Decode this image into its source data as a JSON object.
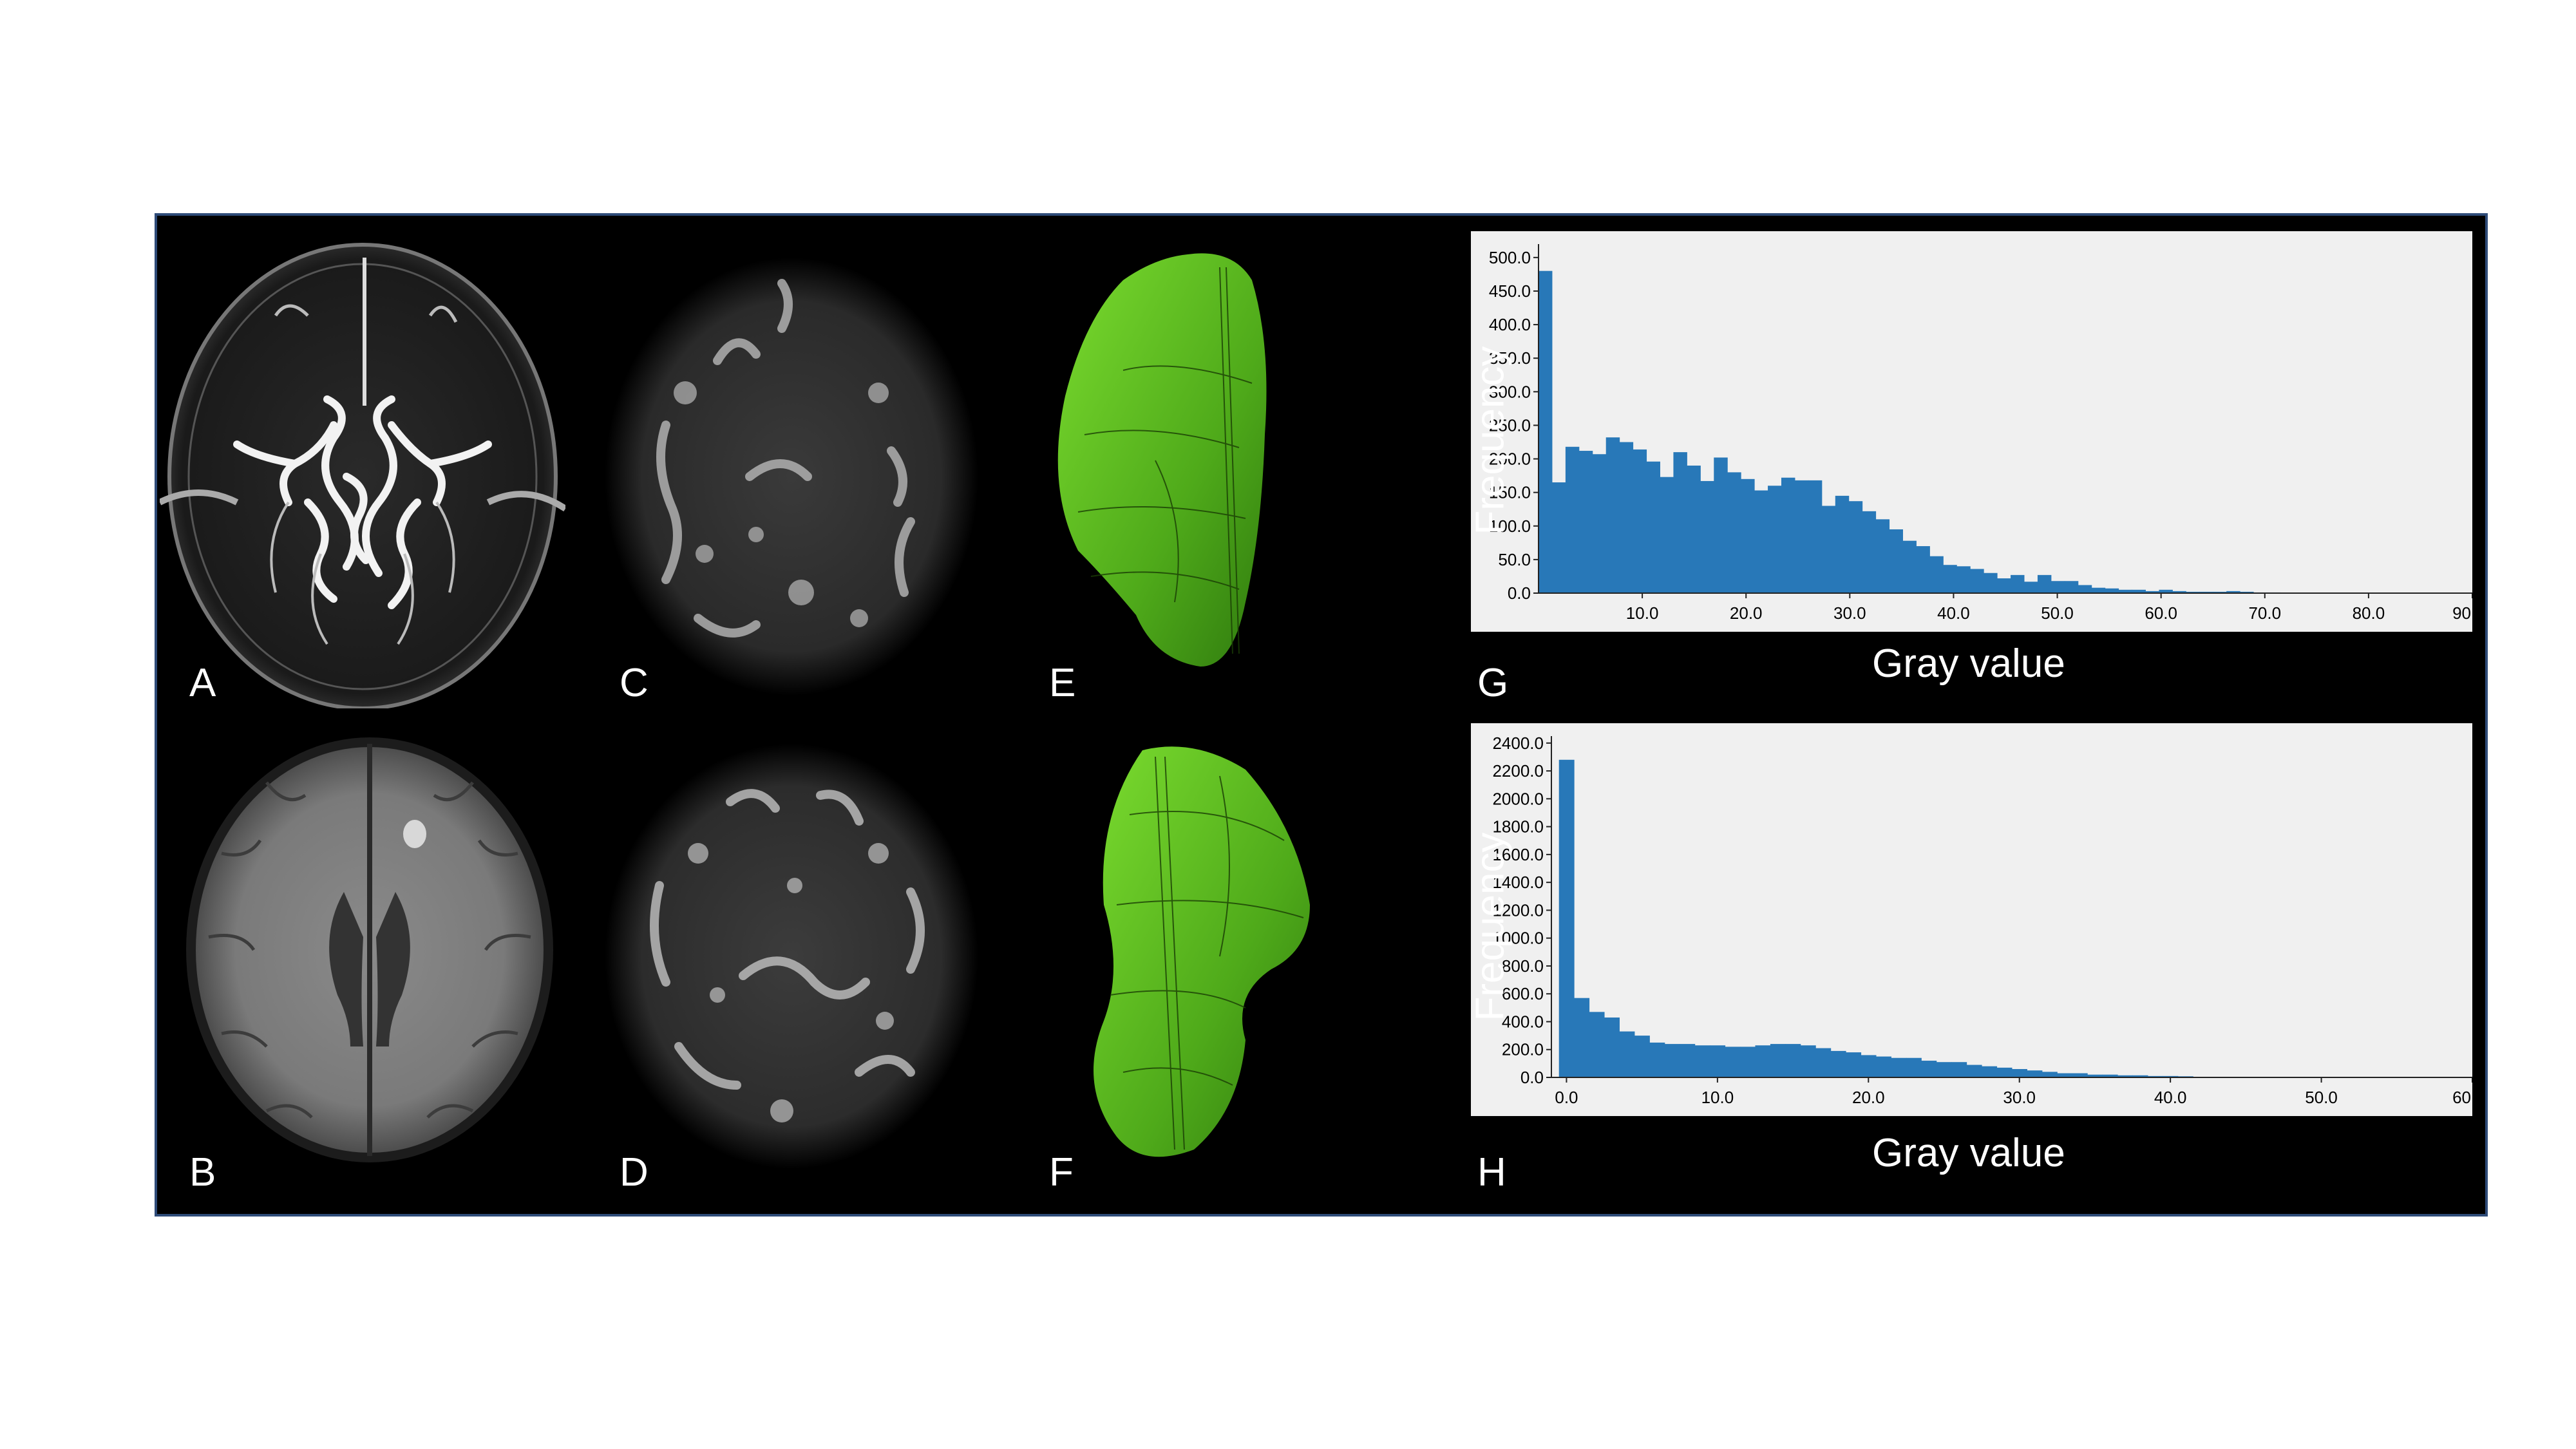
{
  "panels": {
    "A": "A",
    "B": "B",
    "C": "C",
    "D": "D",
    "E": "E",
    "F": "F",
    "G": "G",
    "H": "H"
  },
  "colors": {
    "bar": "#2878b8",
    "plot_bg": "#f0f0f0",
    "mesh": "#5ec81f",
    "frame": "#2e4b78"
  },
  "chart_data": [
    {
      "type": "bar",
      "panel": "G",
      "xlabel": "Gray value",
      "ylabel": "Frequency",
      "xlim": [
        0,
        90
      ],
      "ylim": [
        0,
        520
      ],
      "xticks": [
        "10.0",
        "20.0",
        "30.0",
        "40.0",
        "50.0",
        "60.0",
        "70.0",
        "80.0",
        "90"
      ],
      "xtick_values": [
        10,
        20,
        30,
        40,
        50,
        60,
        70,
        80,
        90
      ],
      "yticks": [
        "0.0",
        "50.0",
        "100.0",
        "150.0",
        "200.0",
        "250.0",
        "300.0",
        "350.0",
        "400.0",
        "450.0",
        "500.0"
      ],
      "ytick_values": [
        0,
        50,
        100,
        150,
        200,
        250,
        300,
        350,
        400,
        450,
        500
      ],
      "bin_width": 1.3,
      "values": [
        480,
        165,
        218,
        212,
        207,
        232,
        225,
        214,
        196,
        173,
        210,
        190,
        167,
        202,
        180,
        170,
        153,
        160,
        172,
        168,
        168,
        130,
        145,
        137,
        122,
        110,
        95,
        78,
        70,
        55,
        42,
        40,
        36,
        30,
        22,
        27,
        17,
        27,
        18,
        18,
        12,
        8,
        7,
        5,
        5,
        3,
        5,
        3,
        2,
        2,
        2,
        3,
        2,
        1,
        1
      ]
    },
    {
      "type": "bar",
      "panel": "H",
      "xlabel": "Gray value",
      "ylabel": "Frequency",
      "xlim": [
        -1,
        60
      ],
      "ylim": [
        0,
        2450
      ],
      "xticks": [
        "0.0",
        "10.0",
        "20.0",
        "30.0",
        "40.0",
        "50.0",
        "60"
      ],
      "xtick_values": [
        0,
        10,
        20,
        30,
        40,
        50,
        60
      ],
      "yticks": [
        "0.0",
        "200.0",
        "400.0",
        "600.0",
        "800.0",
        "1000.0",
        "1200.0",
        "1400.0",
        "1600.0",
        "1800.0",
        "2000.0",
        "2200.0",
        "2400.0"
      ],
      "ytick_values": [
        0,
        200,
        400,
        600,
        800,
        1000,
        1200,
        1400,
        1600,
        1800,
        2000,
        2200,
        2400
      ],
      "bin_width": 1.0,
      "values": [
        2280,
        570,
        470,
        430,
        330,
        300,
        250,
        240,
        240,
        230,
        230,
        220,
        220,
        230,
        240,
        240,
        230,
        210,
        190,
        180,
        160,
        150,
        140,
        140,
        120,
        110,
        110,
        90,
        80,
        70,
        60,
        50,
        40,
        30,
        30,
        20,
        20,
        15,
        15,
        10,
        10,
        8
      ]
    }
  ]
}
